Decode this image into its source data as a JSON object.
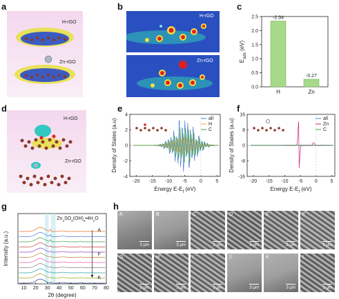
{
  "panels": {
    "a": {
      "label": "a",
      "top_text": "H-rGO",
      "bottom_text": "Zn-rGO"
    },
    "b": {
      "label": "b",
      "top_text": "H-rGO",
      "bottom_text": "Zn-rGO"
    },
    "c": {
      "label": "c"
    },
    "d": {
      "label": "d",
      "top_text": "H-rGO",
      "bottom_text": "Zn-rGO"
    },
    "e": {
      "label": "e",
      "ylabel": "Density of States (a.u)",
      "xlabel": "Energy E-E",
      "xlabel_sub": "f",
      "xlabel_unit": " (eV)",
      "legend": [
        "all",
        "H",
        "C"
      ],
      "legend_colors": [
        "#4a7fd6",
        "#f0a030",
        "#3aa040"
      ],
      "ymin": -4,
      "ymax": 4,
      "xmin": -22,
      "xmax": 6,
      "yticks": [
        -4,
        -2,
        0,
        2,
        4
      ],
      "xticks": [
        -20,
        -15,
        -10,
        -5,
        0,
        5
      ]
    },
    "f": {
      "label": "f",
      "ylabel": "Density of States (a.u)",
      "xlabel": "Energy E-E",
      "xlabel_sub": "f",
      "xlabel_unit": " (eV)",
      "legend": [
        "all",
        "Zn",
        "C"
      ],
      "legend_colors": [
        "#4a7fd6",
        "#d02080",
        "#3aa040"
      ],
      "ymin": -16,
      "ymax": 16,
      "xmin": -22,
      "xmax": 6,
      "yticks": [
        -16,
        -8,
        0,
        8,
        16
      ],
      "xticks": [
        -20,
        -15,
        -10,
        -5,
        0,
        5
      ]
    },
    "g": {
      "label": "g",
      "ylabel": "Intensity (a.u.)",
      "xlabel": "2θ (degree)",
      "formula_parts": [
        "Zn",
        "4",
        "SO",
        "4",
        "(OH)",
        "6",
        "•4H",
        "2",
        "O"
      ],
      "marks": [
        "A",
        "F",
        "K"
      ],
      "xticks": [
        10,
        20,
        30,
        40,
        50,
        60,
        70,
        80
      ],
      "xmin": 5,
      "xmax": 80
    },
    "h": {
      "label": "h",
      "images": [
        {
          "letter": "A",
          "scale": "3 μm"
        },
        {
          "letter": "B",
          "scale": "3 μm"
        },
        {
          "letter": "C",
          "scale": "3 μm"
        },
        {
          "letter": "D",
          "scale": "3 μm"
        },
        {
          "letter": "E",
          "scale": "3 μm"
        },
        {
          "letter": "F",
          "scale": "3 μm"
        },
        {
          "letter": "G",
          "scale": "3 μm"
        },
        {
          "letter": "H",
          "scale": "3 μm"
        },
        {
          "letter": "I",
          "scale": "3 μm"
        },
        {
          "letter": "J",
          "scale": "3 μm"
        },
        {
          "letter": "K",
          "scale": "3 μm"
        },
        {
          "letter": "L",
          "scale": "3 μm"
        }
      ]
    }
  },
  "chart_data": [
    {
      "type": "bar",
      "panel": "c",
      "categories": [
        "H",
        "Zn"
      ],
      "values": [
        -2.34,
        -0.27
      ],
      "data_labels": [
        "-2.34",
        "-0.27"
      ],
      "ylabel": "E_ads (eV)",
      "ylabel_main": "E",
      "ylabel_sub": "ads",
      "ylabel_unit": "(eV)",
      "ylim": [
        0,
        2.5
      ],
      "yticks": [
        0.0,
        0.5,
        1.0,
        1.5,
        2.0,
        2.5
      ],
      "bar_color": "#a6d98a"
    }
  ]
}
